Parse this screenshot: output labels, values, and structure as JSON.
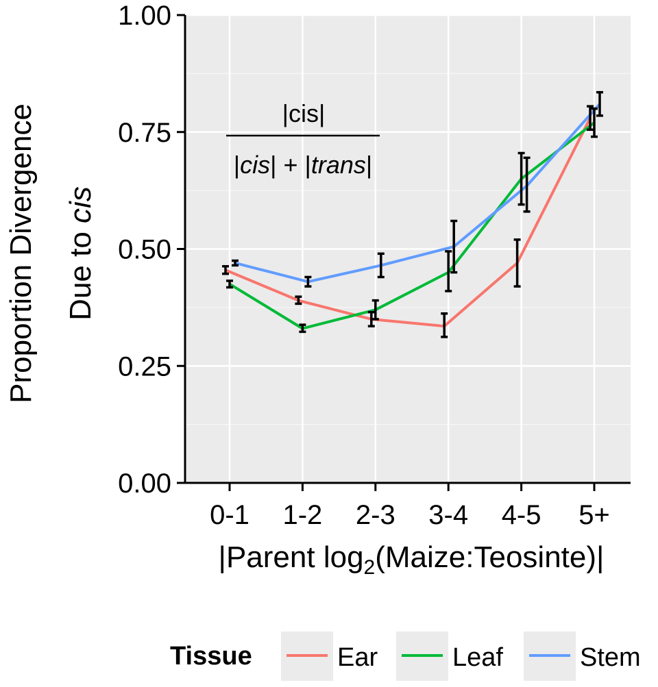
{
  "chart_data": {
    "type": "line",
    "title": "",
    "xlabel_prefix": "|Parent log",
    "xlabel_sub": "2",
    "xlabel_suffix": "(Maize:Teosinte)|",
    "ylabel_line1": "Proportion Divergence",
    "ylabel_line2_prefix": "Due to ",
    "ylabel_line2_italic": "cis",
    "ylim": [
      0,
      1
    ],
    "yticks": [
      "0.00",
      "0.25",
      "0.50",
      "0.75",
      "1.00"
    ],
    "ytick_values": [
      0,
      0.25,
      0.5,
      0.75,
      1.0
    ],
    "categories": [
      "0-1",
      "1-2",
      "2-3",
      "3-4",
      "4-5",
      "5+"
    ],
    "annotation": {
      "numerator": "|cis|",
      "denominator_parts": [
        "|",
        "cis",
        "| + |",
        "trans",
        "|"
      ]
    },
    "legend": {
      "title": "Tissue",
      "position": "bottom",
      "entries": [
        "Ear",
        "Leaf",
        "Stem"
      ]
    },
    "series": [
      {
        "name": "Ear",
        "color": "#F8766D",
        "values": [
          0.455,
          0.39,
          0.35,
          0.335,
          0.47,
          0.78
        ],
        "err_low": [
          0.447,
          0.383,
          0.335,
          0.312,
          0.42,
          0.755
        ],
        "err_high": [
          0.463,
          0.398,
          0.365,
          0.362,
          0.52,
          0.805
        ]
      },
      {
        "name": "Leaf",
        "color": "#00BA38",
        "values": [
          0.425,
          0.33,
          0.37,
          0.45,
          0.65,
          0.77
        ],
        "err_low": [
          0.418,
          0.323,
          0.35,
          0.41,
          0.595,
          0.74
        ],
        "err_high": [
          0.432,
          0.338,
          0.39,
          0.495,
          0.705,
          0.8
        ]
      },
      {
        "name": "Stem",
        "color": "#619CFF",
        "values": [
          0.47,
          0.43,
          0.465,
          0.505,
          0.635,
          0.81
        ],
        "err_low": [
          0.465,
          0.42,
          0.44,
          0.45,
          0.58,
          0.785
        ],
        "err_high": [
          0.475,
          0.44,
          0.49,
          0.56,
          0.695,
          0.835
        ]
      }
    ]
  }
}
